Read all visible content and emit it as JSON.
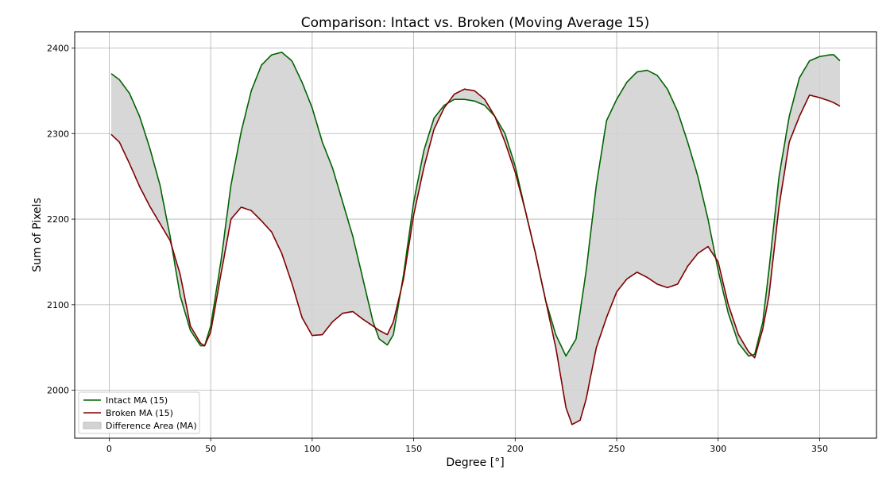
{
  "chart_data": {
    "type": "line",
    "title": "Comparison: Intact vs. Broken (Moving Average 15)",
    "xlabel": "Degree [°]",
    "ylabel": "Sum of Pixels",
    "xlim": [
      -17,
      378
    ],
    "ylim": [
      1944,
      2419
    ],
    "xticks": [
      0,
      50,
      100,
      150,
      200,
      250,
      300,
      350
    ],
    "yticks": [
      2000,
      2100,
      2200,
      2300,
      2400
    ],
    "grid": true,
    "legend_position": "lower-left",
    "colors": {
      "intact": "#006400",
      "broken": "#800000",
      "fill": "#d3d3d3"
    },
    "series": [
      {
        "name": "Intact MA (15)",
        "x": [
          1,
          5,
          10,
          15,
          20,
          25,
          30,
          35,
          40,
          45,
          47,
          50,
          55,
          60,
          65,
          70,
          75,
          80,
          85,
          90,
          95,
          100,
          105,
          110,
          115,
          120,
          125,
          130,
          133,
          137,
          140,
          145,
          150,
          155,
          160,
          165,
          170,
          175,
          180,
          185,
          190,
          195,
          200,
          205,
          210,
          215,
          220,
          225,
          230,
          235,
          240,
          245,
          250,
          255,
          260,
          265,
          270,
          275,
          280,
          285,
          290,
          295,
          300,
          305,
          310,
          315,
          318,
          322,
          325,
          330,
          335,
          340,
          345,
          350,
          355,
          357,
          360
        ],
        "y": [
          2370,
          2363,
          2347,
          2320,
          2283,
          2240,
          2180,
          2110,
          2070,
          2052,
          2052,
          2075,
          2150,
          2240,
          2302,
          2350,
          2380,
          2392,
          2395,
          2385,
          2360,
          2330,
          2290,
          2260,
          2220,
          2180,
          2130,
          2080,
          2060,
          2053,
          2065,
          2135,
          2220,
          2280,
          2318,
          2333,
          2340,
          2340,
          2338,
          2333,
          2320,
          2300,
          2262,
          2210,
          2160,
          2105,
          2065,
          2040,
          2060,
          2140,
          2240,
          2315,
          2340,
          2360,
          2372,
          2374,
          2368,
          2352,
          2326,
          2290,
          2250,
          2200,
          2140,
          2090,
          2055,
          2040,
          2042,
          2080,
          2140,
          2250,
          2320,
          2365,
          2385,
          2390,
          2392,
          2392,
          2385
        ]
      },
      {
        "name": "Broken MA (15)",
        "x": [
          1,
          5,
          10,
          15,
          20,
          25,
          30,
          35,
          40,
          45,
          47,
          50,
          55,
          60,
          65,
          70,
          75,
          80,
          85,
          90,
          95,
          100,
          105,
          110,
          115,
          120,
          125,
          130,
          133,
          137,
          140,
          145,
          150,
          155,
          160,
          165,
          170,
          175,
          180,
          185,
          190,
          195,
          200,
          205,
          210,
          215,
          220,
          225,
          228,
          232,
          235,
          240,
          245,
          250,
          255,
          260,
          265,
          270,
          275,
          280,
          285,
          290,
          295,
          300,
          305,
          310,
          315,
          318,
          322,
          325,
          330,
          335,
          340,
          345,
          350,
          355,
          357,
          360
        ],
        "y": [
          2299,
          2290,
          2265,
          2238,
          2215,
          2195,
          2175,
          2135,
          2075,
          2055,
          2052,
          2068,
          2135,
          2200,
          2214,
          2210,
          2198,
          2185,
          2160,
          2125,
          2085,
          2064,
          2065,
          2080,
          2090,
          2092,
          2083,
          2075,
          2070,
          2065,
          2080,
          2130,
          2205,
          2260,
          2305,
          2330,
          2346,
          2352,
          2350,
          2340,
          2320,
          2290,
          2255,
          2210,
          2160,
          2105,
          2050,
          1980,
          1960,
          1965,
          1990,
          2050,
          2085,
          2115,
          2130,
          2138,
          2132,
          2124,
          2120,
          2124,
          2145,
          2160,
          2168,
          2150,
          2100,
          2065,
          2045,
          2038,
          2072,
          2110,
          2215,
          2290,
          2320,
          2345,
          2342,
          2338,
          2336,
          2332
        ]
      }
    ],
    "fill_between_label": "Difference Area (MA)"
  }
}
